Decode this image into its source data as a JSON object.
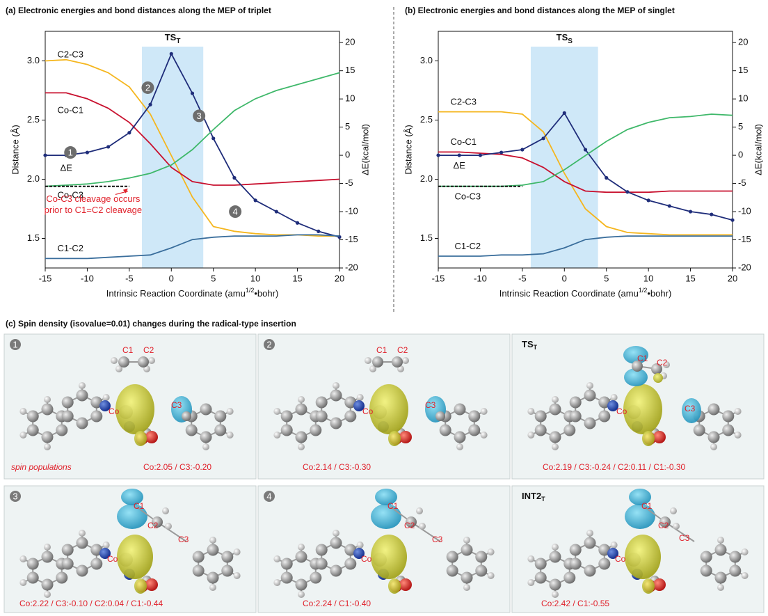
{
  "chart_data": [
    {
      "type": "line",
      "title": "(a) Electronic energies and bond distances along the MEP of triplet",
      "x_label": [
        "Intrinsic Reaction Coordinate (amu",
        "1/2",
        "•bohr)"
      ],
      "y_label": "Distance (Å)",
      "y2_label": "ΔE(kcal/mol)",
      "x": [
        -15,
        -12.5,
        -10,
        -7.5,
        -5,
        -2.5,
        0,
        2.5,
        5,
        7.5,
        10,
        12.5,
        15,
        17.5,
        20
      ],
      "xlim": [
        -15,
        20
      ],
      "xticks": [
        -15,
        -10,
        -5,
        0,
        5,
        10,
        15,
        20
      ],
      "ylim": [
        1.25,
        3.25
      ],
      "yticks": [
        1.5,
        {
          "value": 2,
          "label": "2.0"
        },
        2.5,
        {
          "value": 3,
          "label": "3.0"
        }
      ],
      "y2lim": [
        -20,
        22
      ],
      "y2ticks": [
        -20,
        -15,
        -10,
        -5,
        0,
        5,
        10,
        15,
        20
      ],
      "highlight": {
        "xlim": [
          -3.5,
          3.8
        ],
        "label": "TS",
        "sub": "T",
        "color": "#cfe8f8"
      },
      "reference_line": {
        "y": 1.94,
        "xlim": [
          -15,
          -5
        ]
      },
      "series": [
        {
          "name": "C2-C3",
          "color": "#f5b61e",
          "values": [
            3.0,
            3.01,
            2.97,
            2.9,
            2.78,
            2.55,
            2.2,
            1.85,
            1.6,
            1.56,
            1.54,
            1.53,
            1.53,
            1.52,
            1.52
          ]
        },
        {
          "name": "Co-C1",
          "color": "#c8102e",
          "values": [
            2.73,
            2.73,
            2.68,
            2.6,
            2.48,
            2.3,
            2.1,
            1.98,
            1.95,
            1.95,
            1.96,
            1.97,
            1.98,
            1.99,
            2.0
          ]
        },
        {
          "name": "ΔE",
          "color": "#1f2d7a",
          "axis": "y2",
          "markers": true,
          "values": [
            0,
            0,
            0.5,
            1.5,
            4,
            9,
            18,
            11,
            3,
            -4,
            -8,
            -10,
            -12,
            -13.5,
            -14.5
          ]
        },
        {
          "name": "Co-C3",
          "color": "#3fb86a",
          "values": [
            1.94,
            1.95,
            1.96,
            1.98,
            2.01,
            2.05,
            2.12,
            2.25,
            2.42,
            2.58,
            2.68,
            2.75,
            2.8,
            2.85,
            2.9
          ]
        },
        {
          "name": "C1-C2",
          "color": "#3a6e9c",
          "values": [
            1.33,
            1.33,
            1.33,
            1.34,
            1.35,
            1.36,
            1.42,
            1.49,
            1.51,
            1.52,
            1.52,
            1.52,
            1.53,
            1.53,
            1.52
          ]
        }
      ],
      "annotations": [
        "1",
        "2",
        "3",
        "4"
      ],
      "note": [
        "Co-C3 cleavage occurs",
        "prior to C1=C2 cleavage"
      ],
      "note_color": "#e0202a"
    },
    {
      "type": "line",
      "title": "(b) Electronic energies and bond distances along the MEP of singlet",
      "x_label": [
        "Intrinsic Reaction Coordinate (amu",
        "1/2",
        "•bohr)"
      ],
      "y_label": "Distance (Å)",
      "y2_label": "ΔE(kcal/mol)",
      "x": [
        -15,
        -12.5,
        -10,
        -7.5,
        -5,
        -2.5,
        0,
        2.5,
        5,
        7.5,
        10,
        12.5,
        15,
        17.5,
        20
      ],
      "xlim": [
        -15,
        20
      ],
      "xticks": [
        -15,
        -10,
        -5,
        0,
        5,
        10,
        15,
        20
      ],
      "ylim": [
        1.25,
        3.25
      ],
      "yticks": [
        1.5,
        {
          "value": 2,
          "label": "2.0"
        },
        2.5,
        {
          "value": 3,
          "label": "3.0"
        }
      ],
      "y2lim": [
        -20,
        22
      ],
      "y2ticks": [
        -20,
        -15,
        -10,
        -5,
        0,
        5,
        10,
        15,
        20
      ],
      "highlight": {
        "xlim": [
          -4,
          4
        ],
        "label": "TS",
        "sub": "S",
        "color": "#cfe8f8"
      },
      "reference_line": {
        "y": 1.94,
        "xlim": [
          -15,
          -5
        ]
      },
      "series": [
        {
          "name": "C2-C3",
          "color": "#f5b61e",
          "values": [
            2.57,
            2.57,
            2.57,
            2.57,
            2.55,
            2.4,
            2.05,
            1.75,
            1.6,
            1.55,
            1.54,
            1.53,
            1.53,
            1.53,
            1.53
          ]
        },
        {
          "name": "Co-C1",
          "color": "#c8102e",
          "values": [
            2.23,
            2.23,
            2.22,
            2.21,
            2.18,
            2.1,
            1.98,
            1.9,
            1.89,
            1.89,
            1.89,
            1.9,
            1.9,
            1.9,
            1.9
          ]
        },
        {
          "name": "ΔE",
          "color": "#1f2d7a",
          "axis": "y2",
          "markers": true,
          "values": [
            0,
            0,
            0,
            0.5,
            1,
            3,
            7.5,
            1,
            -4,
            -6.5,
            -8,
            -9,
            -10,
            -10.5,
            -11.5
          ]
        },
        {
          "name": "Co-C3",
          "color": "#3fb86a",
          "values": [
            1.94,
            1.94,
            1.94,
            1.94,
            1.95,
            1.98,
            2.08,
            2.2,
            2.32,
            2.42,
            2.48,
            2.52,
            2.53,
            2.55,
            2.54
          ]
        },
        {
          "name": "C1-C2",
          "color": "#3a6e9c",
          "values": [
            1.35,
            1.35,
            1.35,
            1.36,
            1.36,
            1.37,
            1.42,
            1.49,
            1.51,
            1.52,
            1.52,
            1.52,
            1.52,
            1.52,
            1.52
          ]
        }
      ]
    }
  ],
  "panel_c": {
    "title": "(c) Spin density (isovalue=0.01) changes during the radical-type insertion",
    "panels": [
      {
        "marker": "1",
        "atoms": [
          "C1",
          "C2",
          "Co",
          "C3"
        ],
        "caption": "Co:2.05 / C3:-0.20",
        "note": "spin populations"
      },
      {
        "marker": "2",
        "atoms": [
          "C1",
          "C2",
          "Co",
          "C3"
        ],
        "caption": "Co:2.14 / C3:-0.30"
      },
      {
        "marker": "TS",
        "marker_sub": "T",
        "atoms": [
          "C1",
          "C2",
          "Co",
          "C3"
        ],
        "caption": "Co:2.19 / C3:-0.24 / C2:0.11 / C1:-0.30"
      },
      {
        "marker": "3",
        "atoms": [
          "C1",
          "C2",
          "Co",
          "C3"
        ],
        "caption": "Co:2.22 / C3:-0.10 / C2:0.04 / C1:-0.44"
      },
      {
        "marker": "4",
        "atoms": [
          "C1",
          "C2",
          "Co",
          "C3"
        ],
        "caption": "Co:2.24 / C1:-0.40"
      },
      {
        "marker": "INT2",
        "marker_sub": "T",
        "atoms": [
          "C1",
          "C2",
          "Co",
          "C3"
        ],
        "caption": "Co:2.42 / C1:-0.55"
      }
    ]
  }
}
